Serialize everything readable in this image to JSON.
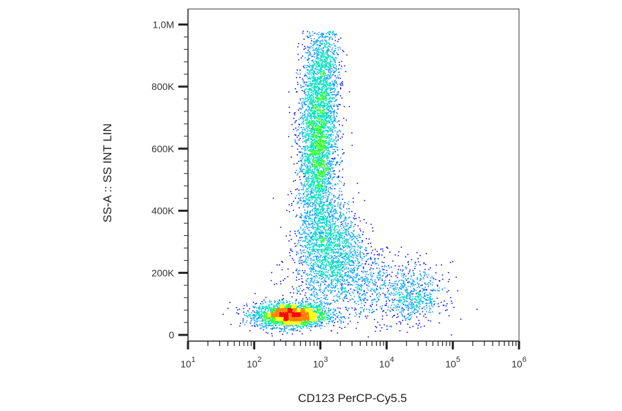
{
  "chart_data": {
    "type": "scatter",
    "title": "",
    "xlabel": "CD123 PerCP-Cy5.5",
    "ylabel": "SS-A :: SS INT LIN",
    "x_scale": "log",
    "y_scale": "linear",
    "xlim": [
      10,
      1000000
    ],
    "ylim": [
      -20000,
      1050000
    ],
    "x_ticks": [
      {
        "value": 10,
        "base": "10",
        "exp": "1"
      },
      {
        "value": 100,
        "base": "10",
        "exp": "2"
      },
      {
        "value": 1000,
        "base": "10",
        "exp": "3"
      },
      {
        "value": 10000,
        "base": "10",
        "exp": "4"
      },
      {
        "value": 100000,
        "base": "10",
        "exp": "5"
      },
      {
        "value": 1000000,
        "base": "10",
        "exp": "6"
      }
    ],
    "y_ticks": [
      {
        "value": 0,
        "label": "0"
      },
      {
        "value": 200000,
        "label": "200K"
      },
      {
        "value": 400000,
        "label": "400K"
      },
      {
        "value": 600000,
        "label": "600K"
      },
      {
        "value": 800000,
        "label": "800K"
      },
      {
        "value": 1000000,
        "label": "1,0M"
      }
    ],
    "color_scale": [
      "#0000ff",
      "#00a0ff",
      "#00e0c0",
      "#30ff30",
      "#ffff00",
      "#ff8000",
      "#ff0000"
    ],
    "populations": [
      {
        "x_center": 350,
        "y_center": 65000,
        "x_log_spread": 0.17,
        "y_spread": 14000,
        "count": 2600
      },
      {
        "x_center": 900,
        "y_center": 600000,
        "x_log_spread": 0.09,
        "y_spread": 110000,
        "count": 3200
      },
      {
        "x_center": 1100,
        "y_center": 870000,
        "x_log_spread": 0.08,
        "y_spread": 70000,
        "count": 900
      },
      {
        "x_center": 1400,
        "y_center": 280000,
        "x_log_spread": 0.16,
        "y_spread": 55000,
        "count": 1500
      },
      {
        "x_center": 25000,
        "y_center": 120000,
        "x_log_spread": 0.14,
        "y_spread": 28000,
        "count": 450
      },
      {
        "x_center": 4000,
        "y_center": 160000,
        "x_log_spread": 0.35,
        "y_spread": 40000,
        "count": 900
      }
    ],
    "grid": false,
    "legend": "none"
  }
}
